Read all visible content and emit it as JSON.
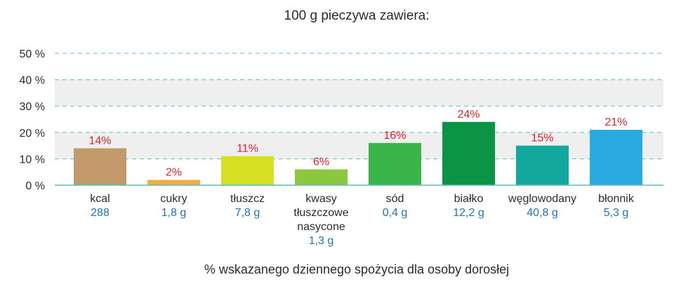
{
  "chart_data": {
    "type": "bar",
    "title": "100 g pieczywa zawiera:",
    "xlabel": "% wskazanego dziennego spożycia dla osoby dorosłej",
    "ylabel": "",
    "ylim": [
      0,
      50
    ],
    "yticks": [
      {
        "value": 0,
        "label": "0 %"
      },
      {
        "value": 10,
        "label": "10 %"
      },
      {
        "value": 20,
        "label": "20 %"
      },
      {
        "value": 30,
        "label": "30 %"
      },
      {
        "value": 40,
        "label": "40 %"
      },
      {
        "value": 50,
        "label": "50 %"
      }
    ],
    "shaded_bands": [
      [
        10,
        20
      ],
      [
        30,
        40
      ]
    ],
    "band_color": "#efefef",
    "grid": true,
    "grid_color": "#5bbfb9",
    "categories": [
      {
        "label": [
          "kcal"
        ],
        "amount": "288",
        "value": 14,
        "value_label": "14%",
        "color": "#c39a6b"
      },
      {
        "label": [
          "cukry"
        ],
        "amount": "1,8 g",
        "value": 2,
        "value_label": "2%",
        "color": "#f5ac3e"
      },
      {
        "label": [
          "tłuszcz"
        ],
        "amount": "7,8 g",
        "value": 11,
        "value_label": "11%",
        "color": "#d7df23"
      },
      {
        "label": [
          "kwasy",
          "tłuszczowe",
          "nasycone"
        ],
        "amount": "1,3 g",
        "value": 6,
        "value_label": "6%",
        "color": "#8dc63f"
      },
      {
        "label": [
          "sód"
        ],
        "amount": "0,4 g",
        "value": 16,
        "value_label": "16%",
        "color": "#39b54a"
      },
      {
        "label": [
          "białko"
        ],
        "amount": "12,2 g",
        "value": 24,
        "value_label": "24%",
        "color": "#0b9444"
      },
      {
        "label": [
          "węglowodany"
        ],
        "amount": "40,8 g",
        "value": 15,
        "value_label": "15%",
        "color": "#13a89e"
      },
      {
        "label": [
          "błonnik"
        ],
        "amount": "5,3 g",
        "value": 21,
        "value_label": "21%",
        "color": "#29abe2"
      }
    ]
  }
}
